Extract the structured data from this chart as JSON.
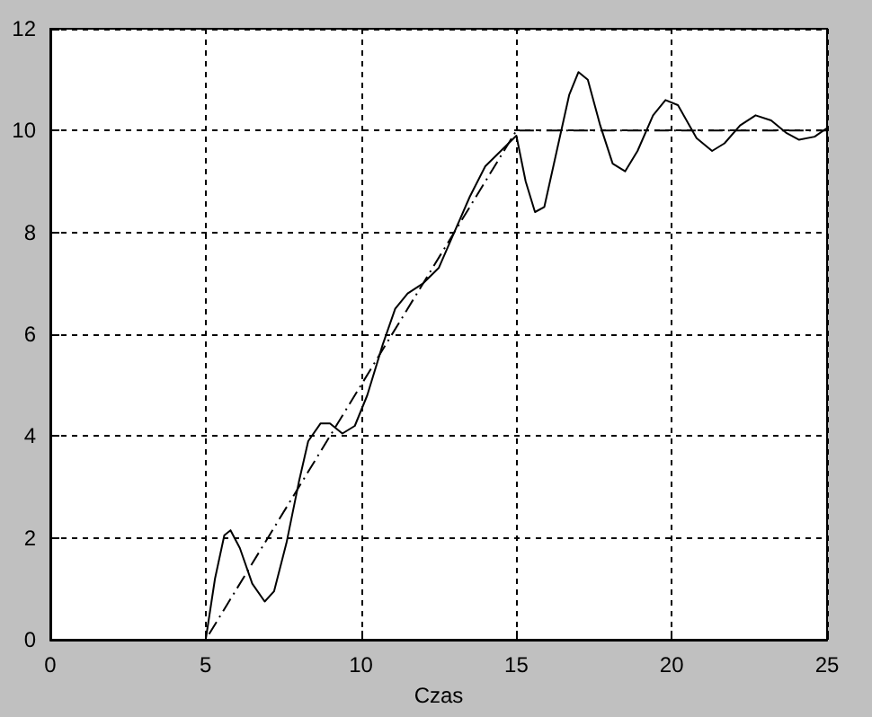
{
  "chart_data": {
    "type": "line",
    "xlabel": "Czas",
    "xlim": [
      0,
      25
    ],
    "xticks": [
      0,
      5,
      10,
      15,
      20,
      25
    ],
    "ylim": [
      0,
      12
    ],
    "yticks": [
      0,
      2,
      4,
      6,
      8,
      10,
      12
    ],
    "grid": true,
    "marker": "none",
    "series": [
      {
        "color": "#000000",
        "line_style": "solid",
        "x": [
          0,
          5,
          5.3,
          5.6,
          5.8,
          6.1,
          6.5,
          6.9,
          7.2,
          7.6,
          8.0,
          8.3,
          8.7,
          9.0,
          9.4,
          9.8,
          10.2,
          10.7,
          11.1,
          11.5,
          12.0,
          12.5,
          13.0,
          13.5,
          14.0,
          14.5,
          15.0,
          15.3,
          15.6,
          15.9,
          16.3,
          16.7,
          17.0,
          17.3,
          17.7,
          18.1,
          18.5,
          18.9,
          19.4,
          19.8,
          20.2,
          20.8,
          21.3,
          21.7,
          22.2,
          22.7,
          23.2,
          23.7,
          24.1,
          24.6,
          25
        ],
        "values": [
          0,
          0,
          1.2,
          2.05,
          2.15,
          1.8,
          1.1,
          0.75,
          0.95,
          1.9,
          3.1,
          3.9,
          4.25,
          4.25,
          4.05,
          4.2,
          4.8,
          5.8,
          6.5,
          6.8,
          7.0,
          7.3,
          8.0,
          8.7,
          9.3,
          9.6,
          9.9,
          9.0,
          8.4,
          8.5,
          9.6,
          10.7,
          11.15,
          11.0,
          10.1,
          9.35,
          9.2,
          9.6,
          10.3,
          10.6,
          10.5,
          9.85,
          9.6,
          9.75,
          10.1,
          10.3,
          10.2,
          9.95,
          9.82,
          9.88,
          10.05
        ]
      },
      {
        "color": "#000000",
        "line_style": "dashed",
        "x": [
          0,
          5,
          15,
          25
        ],
        "values": [
          0,
          0,
          10,
          10
        ]
      }
    ]
  }
}
